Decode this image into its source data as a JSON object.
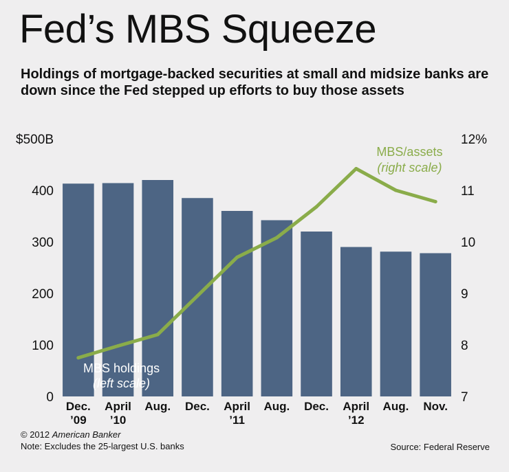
{
  "title": "Fed’s MBS Squeeze",
  "subtitle": "Holdings of mortgage-backed securities at small and midsize banks are down since the Fed stepped up efforts to buy those assets",
  "footer": {
    "copyright_prefix": "© 2012 ",
    "copyright_brand": "American Banker",
    "note": "Note: Excludes the 25-largest U.S. banks",
    "source": "Source: Federal Reserve"
  },
  "colors": {
    "bar": "#4d6584",
    "line": "#8aac4a",
    "background": "#efeeef",
    "annotation_line": "#8aac4a",
    "annotation_bar": "#ffffff"
  },
  "chart_data": {
    "type": "bar",
    "categories": [
      [
        "Dec.",
        "’09"
      ],
      [
        "April",
        "’10"
      ],
      [
        "Aug.",
        ""
      ],
      [
        "Dec.",
        ""
      ],
      [
        "April",
        "’11"
      ],
      [
        "Aug.",
        ""
      ],
      [
        "Dec.",
        ""
      ],
      [
        "April",
        "’12"
      ],
      [
        "Aug.",
        ""
      ],
      [
        "Nov.",
        ""
      ]
    ],
    "series": [
      {
        "name": "MBS holdings",
        "axis": "left",
        "type": "bar",
        "values": [
          413,
          414,
          420,
          385,
          360,
          342,
          320,
          290,
          281,
          278
        ]
      },
      {
        "name": "MBS/assets",
        "axis": "right",
        "type": "line",
        "values": [
          7.75,
          7.98,
          8.2,
          8.95,
          9.7,
          10.08,
          10.68,
          11.42,
          11.0,
          10.78
        ]
      }
    ],
    "left_axis": {
      "ylim": [
        0,
        500
      ],
      "ticks": [
        "0",
        "100",
        "200",
        "300",
        "400",
        "$500B"
      ]
    },
    "right_axis": {
      "ylim": [
        7,
        12
      ],
      "ticks": [
        "7",
        "8",
        "9",
        "10",
        "11",
        "12%"
      ]
    },
    "annotations": {
      "line_label": "MBS/assets",
      "line_scale": "(right scale)",
      "bar_label": "MBS holdings",
      "bar_scale": "(left scale)"
    }
  }
}
